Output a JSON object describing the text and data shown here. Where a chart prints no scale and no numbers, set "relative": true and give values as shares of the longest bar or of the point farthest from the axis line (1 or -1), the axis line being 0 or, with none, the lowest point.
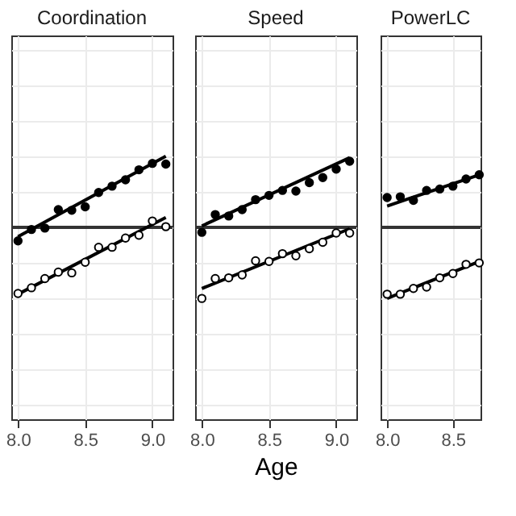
{
  "chart_data": [
    {
      "type": "scatter",
      "title": "Coordination",
      "relative": true,
      "grid": true,
      "marker": "circle",
      "tick_labels": "x",
      "xlim": [
        7.95,
        9.15
      ],
      "xticks": [
        {
          "value": 8.0,
          "label": "8.0"
        },
        {
          "value": 8.5,
          "label": "8.5"
        },
        {
          "value": 9.0,
          "label": "9.0"
        }
      ],
      "x": [
        8.0,
        8.1,
        8.2,
        8.3,
        8.4,
        8.5,
        8.6,
        8.7,
        8.8,
        8.9,
        9.0,
        9.1
      ],
      "ref_lines": [
        {
          "axis": "y",
          "value": 0,
          "color": "#333333"
        }
      ],
      "series": [
        {
          "type": "line",
          "marker": "none",
          "color": "#000000",
          "x": [
            8.0,
            9.1
          ],
          "values": [
            -0.13,
            1.0
          ]
        },
        {
          "type": "line",
          "marker": "none",
          "color": "#000000",
          "x": [
            8.0,
            9.1
          ],
          "values": [
            -0.94,
            0.14
          ]
        },
        {
          "color": "#000000",
          "values": [
            -0.19,
            -0.03,
            -0.01,
            0.25,
            0.24,
            0.29,
            0.49,
            0.58,
            0.67,
            0.81,
            0.9,
            0.89
          ]
        },
        {
          "color": "#ffffff",
          "values": [
            -0.93,
            -0.85,
            -0.72,
            -0.63,
            -0.64,
            -0.49,
            -0.28,
            -0.28,
            -0.15,
            -0.11,
            0.09,
            0.01
          ]
        }
      ]
    },
    {
      "type": "scatter",
      "title": "Speed",
      "xlabel": "Age",
      "relative": true,
      "grid": true,
      "marker": "circle",
      "tick_labels": "x",
      "xlim": [
        7.95,
        9.15
      ],
      "xticks": [
        {
          "value": 8.0,
          "label": "8.0"
        },
        {
          "value": 8.5,
          "label": "8.5"
        },
        {
          "value": 9.0,
          "label": "9.0"
        }
      ],
      "x": [
        8.0,
        8.1,
        8.2,
        8.3,
        8.4,
        8.5,
        8.6,
        8.7,
        8.8,
        8.9,
        9.0,
        9.1
      ],
      "ref_lines": [
        {
          "axis": "y",
          "value": 0,
          "color": "#333333"
        }
      ],
      "series": [
        {
          "type": "line",
          "marker": "none",
          "color": "#000000",
          "x": [
            8.0,
            9.1
          ],
          "values": [
            0.02,
            0.98
          ]
        },
        {
          "type": "line",
          "marker": "none",
          "color": "#000000",
          "x": [
            8.0,
            9.1
          ],
          "values": [
            -0.86,
            -0.02
          ]
        },
        {
          "color": "#000000",
          "values": [
            -0.07,
            0.18,
            0.16,
            0.25,
            0.39,
            0.45,
            0.52,
            0.51,
            0.63,
            0.7,
            0.82,
            0.93
          ]
        },
        {
          "color": "#ffffff",
          "values": [
            -1.0,
            -0.72,
            -0.71,
            -0.67,
            -0.47,
            -0.48,
            -0.37,
            -0.4,
            -0.3,
            -0.21,
            -0.08,
            -0.08
          ]
        }
      ]
    },
    {
      "type": "scatter",
      "title": "PowerLC",
      "relative": true,
      "grid": true,
      "marker": "circle",
      "tick_labels": "x",
      "xlim": [
        7.95,
        8.71
      ],
      "xticks": [
        {
          "value": 8.0,
          "label": "8.0"
        },
        {
          "value": 8.5,
          "label": "8.5"
        }
      ],
      "x": [
        8.0,
        8.1,
        8.2,
        8.3,
        8.4,
        8.5,
        8.6,
        8.7
      ],
      "ref_lines": [
        {
          "axis": "y",
          "value": 0,
          "color": "#333333"
        }
      ],
      "series": [
        {
          "type": "line",
          "marker": "none",
          "color": "#000000",
          "x": [
            8.0,
            8.7
          ],
          "values": [
            0.3,
            0.74
          ]
        },
        {
          "type": "line",
          "marker": "none",
          "color": "#000000",
          "x": [
            8.0,
            8.7
          ],
          "values": [
            -1.0,
            -0.48
          ]
        },
        {
          "color": "#000000",
          "values": [
            0.42,
            0.43,
            0.38,
            0.52,
            0.54,
            0.58,
            0.68,
            0.74
          ]
        },
        {
          "color": "#ffffff",
          "values": [
            -0.94,
            -0.94,
            -0.86,
            -0.84,
            -0.71,
            -0.65,
            -0.52,
            -0.5
          ]
        }
      ]
    }
  ]
}
